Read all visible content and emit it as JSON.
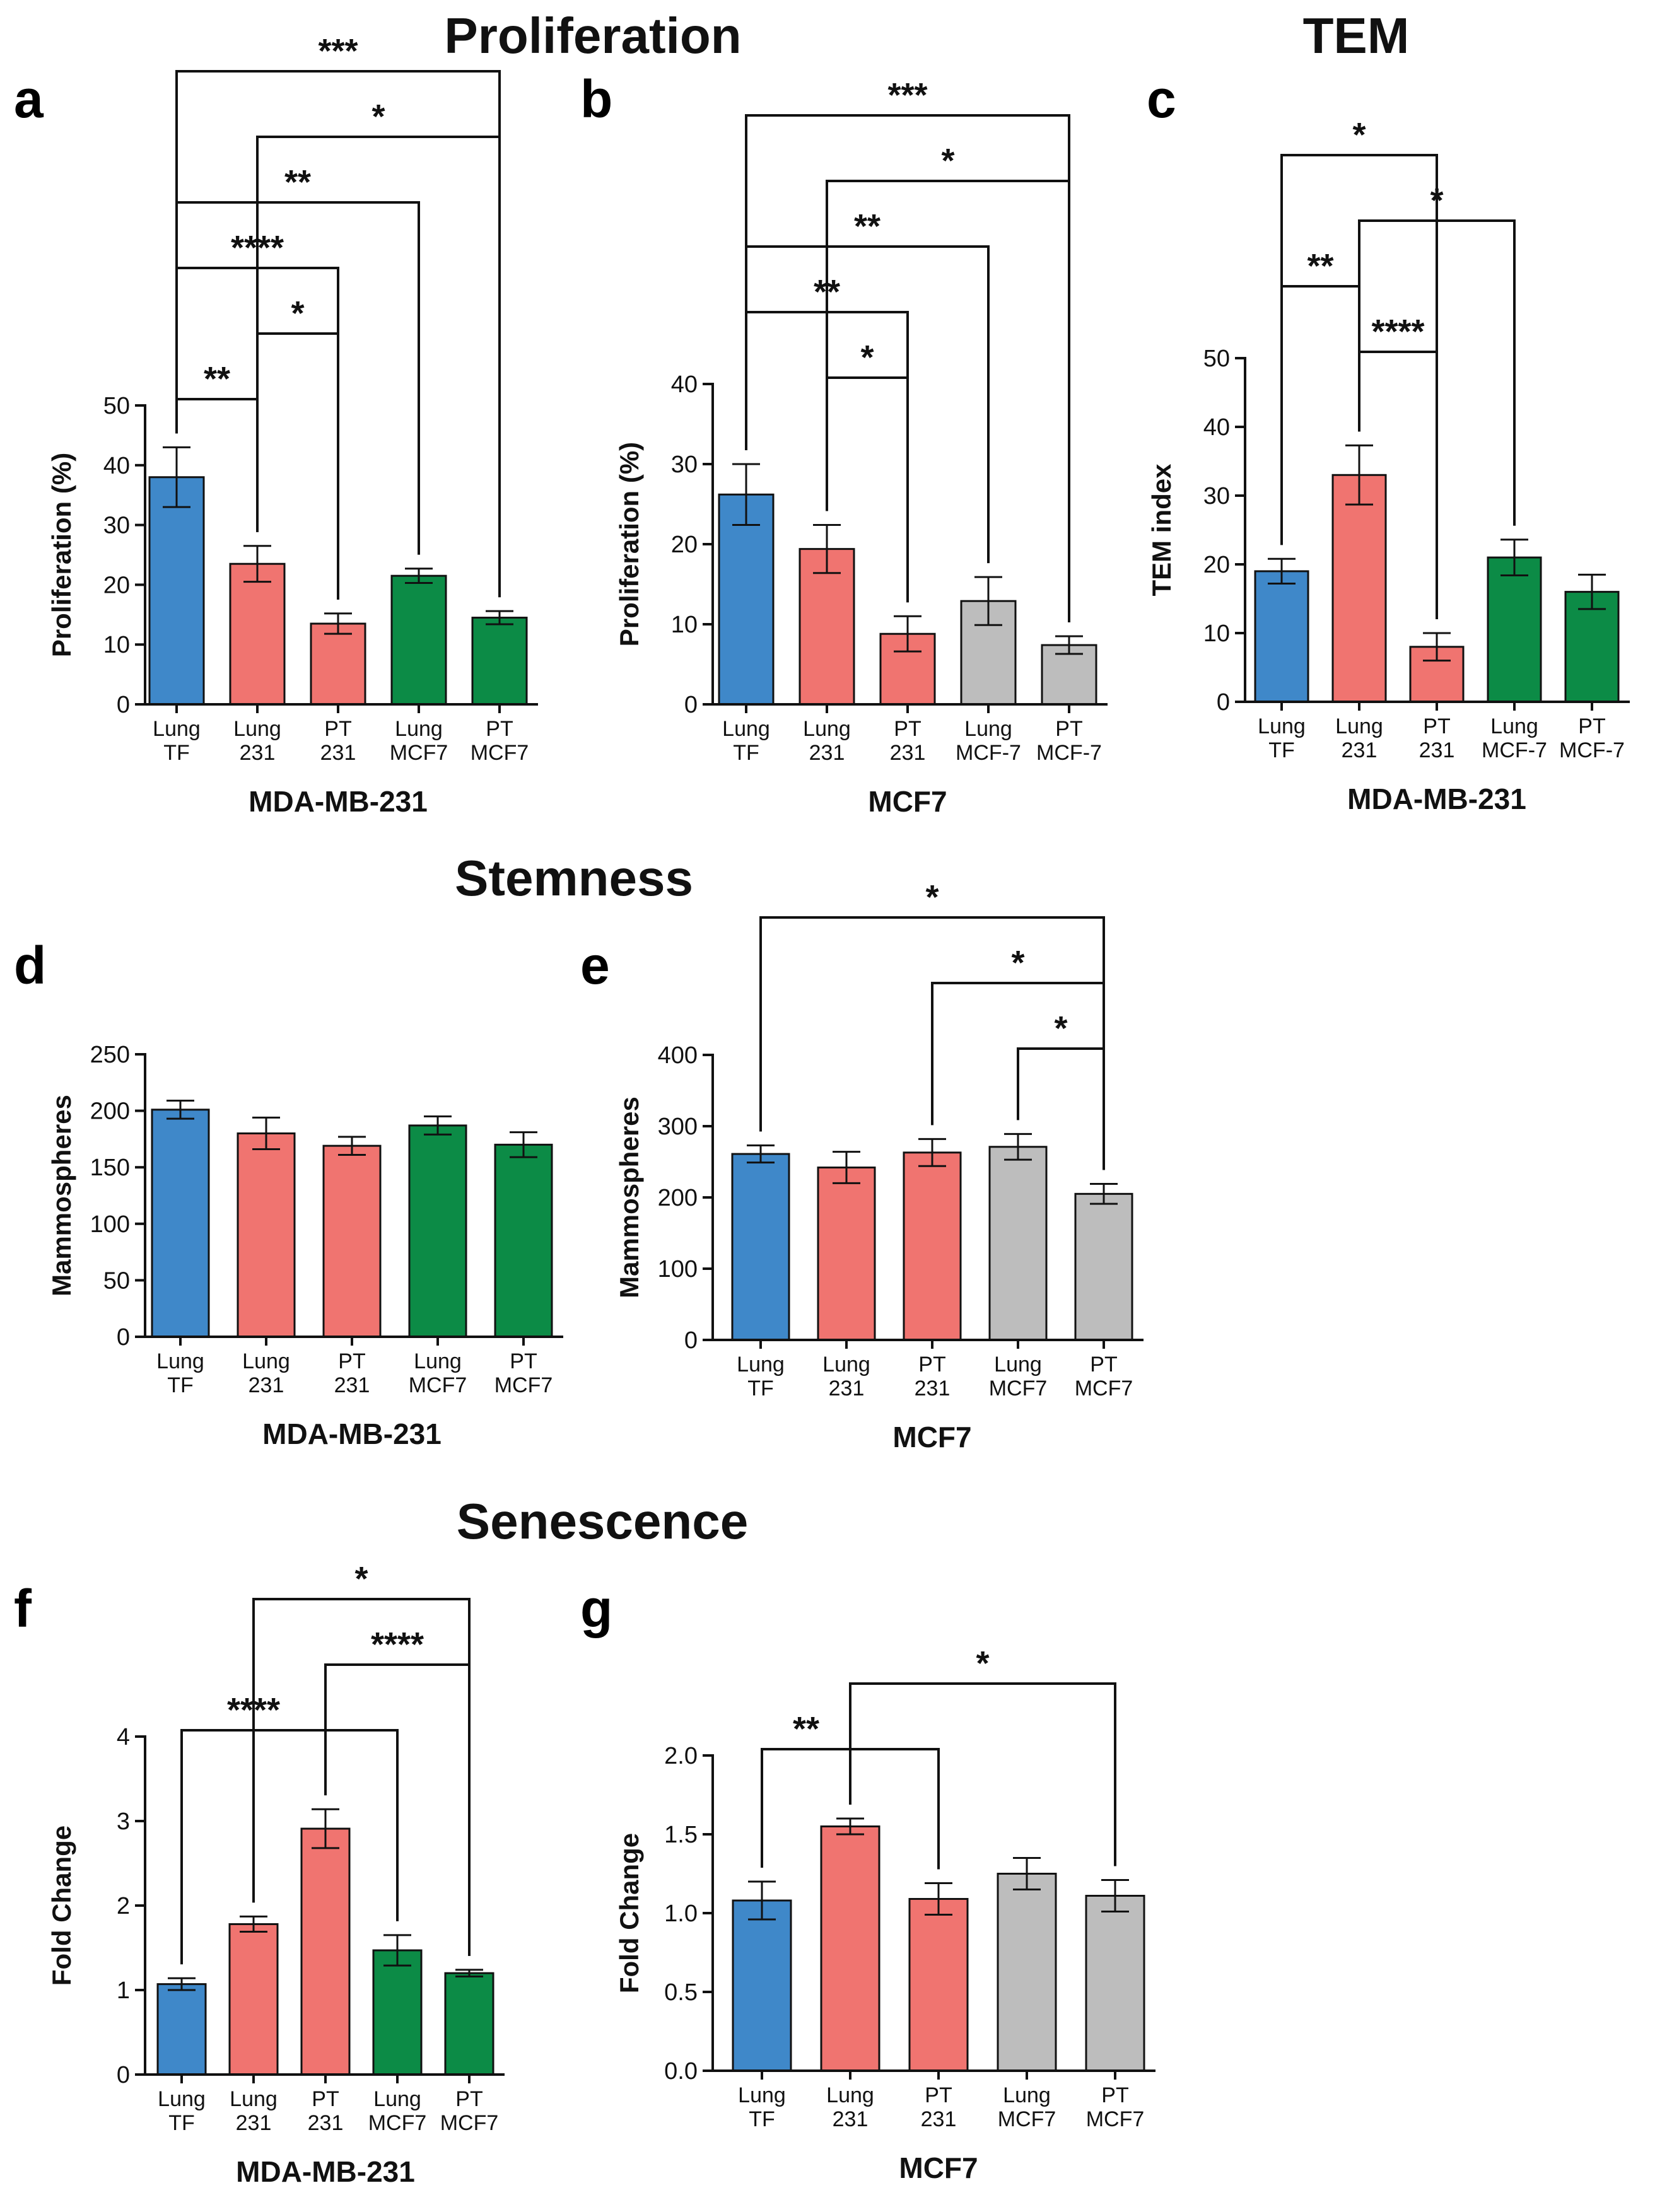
{
  "sections": {
    "proliferation": "Proliferation",
    "tem": "TEM",
    "stemness": "Stemness",
    "senescence": "Senescence"
  },
  "colors": {
    "blue": "#3f88c9",
    "red": "#f07470",
    "green": "#0c8b46",
    "gray": "#bdbdbd"
  },
  "chart_data": [
    {
      "panel": "a",
      "type": "bar",
      "categories": [
        "Lung\nTF",
        "Lung\n231",
        "PT\n231",
        "Lung\nMCF7",
        "PT\nMCF7"
      ],
      "values": [
        38,
        23.5,
        13.5,
        21.5,
        14.5
      ],
      "errors": [
        5,
        3,
        1.7,
        1.2,
        1.1
      ],
      "bar_colors": [
        "blue",
        "red",
        "red",
        "green",
        "green"
      ],
      "ylabel": "Proliferation (%)",
      "xlabel": "MDA-MB-231",
      "ylim": [
        0,
        50
      ],
      "yticks": [
        0,
        10,
        20,
        30,
        40,
        50
      ],
      "brackets": [
        {
          "from": 0,
          "to": 1,
          "label": "**"
        },
        {
          "from": 1,
          "to": 2,
          "label": "*"
        },
        {
          "from": 0,
          "to": 2,
          "label": "****"
        },
        {
          "from": 0,
          "to": 3,
          "label": "**"
        },
        {
          "from": 1,
          "to": 4,
          "label": "*"
        },
        {
          "from": 0,
          "to": 4,
          "label": "***"
        }
      ]
    },
    {
      "panel": "b",
      "type": "bar",
      "categories": [
        "Lung\nTF",
        "Lung\n231",
        "PT\n231",
        "Lung\nMCF-7",
        "PT\nMCF-7"
      ],
      "values": [
        26.2,
        19.4,
        8.8,
        12.9,
        7.4
      ],
      "errors": [
        3.8,
        3,
        2.2,
        3,
        1.1
      ],
      "bar_colors": [
        "blue",
        "red",
        "red",
        "gray",
        "gray"
      ],
      "ylabel": "Proliferation (%)",
      "xlabel": "MCF7",
      "ylim": [
        0,
        40
      ],
      "yticks": [
        0,
        10,
        20,
        30,
        40
      ],
      "brackets": [
        {
          "from": 1,
          "to": 2,
          "label": "*"
        },
        {
          "from": 0,
          "to": 2,
          "label": "**"
        },
        {
          "from": 0,
          "to": 3,
          "label": "**"
        },
        {
          "from": 1,
          "to": 4,
          "label": "*"
        },
        {
          "from": 0,
          "to": 4,
          "label": "***"
        }
      ]
    },
    {
      "panel": "c",
      "type": "bar",
      "categories": [
        "Lung\nTF",
        "Lung\n231",
        "PT\n231",
        "Lung\nMCF-7",
        "PT\nMCF-7"
      ],
      "values": [
        19,
        33,
        8,
        21,
        16
      ],
      "errors": [
        1.8,
        4.3,
        2,
        2.6,
        2.5
      ],
      "bar_colors": [
        "blue",
        "red",
        "red",
        "green",
        "green"
      ],
      "ylabel": "TEM index",
      "xlabel": "MDA-MB-231",
      "ylim": [
        0,
        50
      ],
      "yticks": [
        0,
        10,
        20,
        30,
        40,
        50
      ],
      "brackets": [
        {
          "from": 1,
          "to": 2,
          "label": "****"
        },
        {
          "from": 0,
          "to": 1,
          "label": "**"
        },
        {
          "from": 1,
          "to": 3,
          "label": "*"
        },
        {
          "from": 0,
          "to": 2,
          "label": "*"
        }
      ]
    },
    {
      "panel": "d",
      "type": "bar",
      "categories": [
        "Lung\nTF",
        "Lung\n231",
        "PT\n231",
        "Lung\nMCF7",
        "PT\nMCF7"
      ],
      "values": [
        201,
        180,
        169,
        187,
        170
      ],
      "errors": [
        8,
        14,
        8,
        8,
        11
      ],
      "bar_colors": [
        "blue",
        "red",
        "red",
        "green",
        "green"
      ],
      "ylabel": "Mammospheres",
      "xlabel": "MDA-MB-231",
      "ylim": [
        0,
        250
      ],
      "yticks": [
        0,
        50,
        100,
        150,
        200,
        250
      ],
      "brackets": []
    },
    {
      "panel": "e",
      "type": "bar",
      "categories": [
        "Lung\nTF",
        "Lung\n231",
        "PT\n231",
        "Lung\nMCF7",
        "PT\nMCF7"
      ],
      "values": [
        261,
        242,
        263,
        271,
        205
      ],
      "errors": [
        12,
        22,
        19,
        18,
        14
      ],
      "bar_colors": [
        "blue",
        "red",
        "red",
        "gray",
        "gray"
      ],
      "ylabel": "Mammospheres",
      "xlabel": "MCF7",
      "ylim": [
        0,
        400
      ],
      "yticks": [
        0,
        100,
        200,
        300,
        400
      ],
      "brackets": [
        {
          "from": 3,
          "to": 4,
          "label": "*"
        },
        {
          "from": 2,
          "to": 4,
          "label": "*"
        },
        {
          "from": 0,
          "to": 4,
          "label": "*"
        }
      ]
    },
    {
      "panel": "f",
      "type": "bar",
      "categories": [
        "Lung\nTF",
        "Lung\n231",
        "PT\n231",
        "Lung\nMCF7",
        "PT\nMCF7"
      ],
      "values": [
        1.07,
        1.78,
        2.91,
        1.47,
        1.2
      ],
      "errors": [
        0.07,
        0.09,
        0.23,
        0.18,
        0.04
      ],
      "bar_colors": [
        "blue",
        "red",
        "red",
        "green",
        "green"
      ],
      "ylabel": "Fold Change",
      "xlabel": "MDA-MB-231",
      "ylim": [
        0,
        4
      ],
      "yticks": [
        0,
        1,
        2,
        3,
        4
      ],
      "brackets": [
        {
          "from": 0,
          "to": 3,
          "label": "****",
          "pivot": 2
        },
        {
          "from": 2,
          "to": 4,
          "label": "****"
        },
        {
          "from": 1,
          "to": 4,
          "label": "*"
        }
      ]
    },
    {
      "panel": "g",
      "type": "bar",
      "categories": [
        "Lung\nTF",
        "Lung\n231",
        "PT\n231",
        "Lung\nMCF7",
        "PT\nMCF7"
      ],
      "values": [
        1.08,
        1.55,
        1.09,
        1.25,
        1.11
      ],
      "errors": [
        0.12,
        0.05,
        0.1,
        0.1,
        0.1
      ],
      "bar_colors": [
        "blue",
        "red",
        "red",
        "gray",
        "gray"
      ],
      "ylabel": "Fold Change",
      "xlabel": "MCF7",
      "ylim": [
        0,
        2.0
      ],
      "yticks": [
        "0.0",
        "0.5",
        "1.0",
        "1.5",
        "2.0"
      ],
      "brackets": [
        {
          "from": 0,
          "to": 2,
          "label": "**",
          "pivot": 1
        },
        {
          "from": 1,
          "to": 4,
          "label": "*"
        }
      ]
    }
  ]
}
